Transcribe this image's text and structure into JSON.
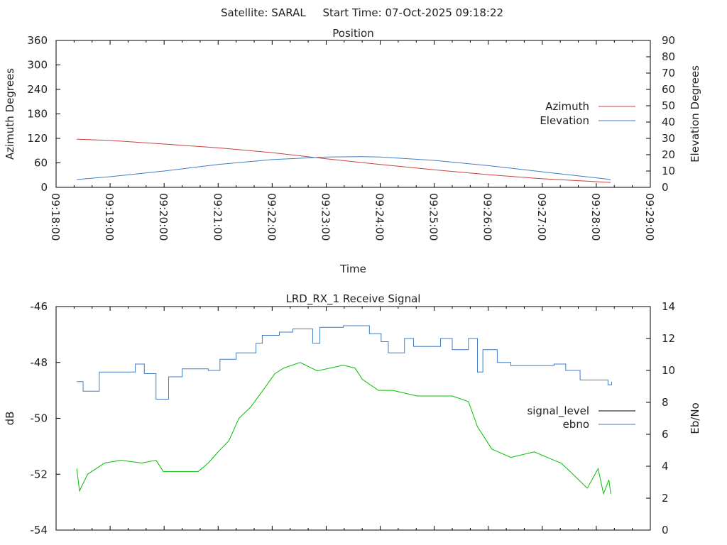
{
  "page": {
    "title": "Satellite: SARAL     Start Time: 07-Oct-2025 09:18:22"
  },
  "chart_data": [
    {
      "type": "line",
      "title": "Position",
      "xlabel": "Time",
      "ylabel": "Azimuth Degrees",
      "y2label": "Elevation Degrees",
      "xlim": [
        "09:18:00",
        "09:29:00"
      ],
      "xticks": [
        "09:18:00",
        "09:19:00",
        "09:20:00",
        "09:21:00",
        "09:22:00",
        "09:23:00",
        "09:24:00",
        "09:25:00",
        "09:26:00",
        "09:27:00",
        "09:28:00",
        "09:29:00"
      ],
      "ylim": [
        0,
        360
      ],
      "yticks": [
        0,
        60,
        120,
        180,
        240,
        300,
        360
      ],
      "y2lim": [
        0,
        90
      ],
      "y2ticks": [
        0,
        10,
        20,
        30,
        40,
        50,
        60,
        70,
        80,
        90
      ],
      "legend": "right",
      "grid": false,
      "series": [
        {
          "name": "Azimuth",
          "axis": "y",
          "color": "#c8423c",
          "points": [
            [
              "09:18:23",
              118
            ],
            [
              "09:19:00",
              115
            ],
            [
              "09:20:00",
              106
            ],
            [
              "09:21:00",
              97
            ],
            [
              "09:22:00",
              85
            ],
            [
              "09:23:00",
              70
            ],
            [
              "09:24:00",
              56
            ],
            [
              "09:25:00",
              43
            ],
            [
              "09:26:00",
              31
            ],
            [
              "09:27:00",
              21
            ],
            [
              "09:28:00",
              14
            ],
            [
              "09:28:16",
              12
            ]
          ]
        },
        {
          "name": "Elevation",
          "axis": "y2",
          "color": "#3f7cc4",
          "points": [
            [
              "09:18:23",
              4.8
            ],
            [
              "09:19:00",
              6.5
            ],
            [
              "09:20:00",
              10
            ],
            [
              "09:21:00",
              14
            ],
            [
              "09:22:00",
              17
            ],
            [
              "09:23:00",
              18.6
            ],
            [
              "09:23:40",
              18.8
            ],
            [
              "09:24:00",
              18.6
            ],
            [
              "09:25:00",
              16.5
            ],
            [
              "09:26:00",
              13.3
            ],
            [
              "09:27:00",
              9.5
            ],
            [
              "09:28:00",
              5.8
            ],
            [
              "09:28:16",
              4.8
            ]
          ]
        }
      ]
    },
    {
      "type": "line",
      "title": "LRD_RX_1 Receive Signal",
      "xlabel": "",
      "ylabel": "dB",
      "y2label": "Eb/No",
      "xlim": [
        "09:18:00",
        "09:29:00"
      ],
      "ylim": [
        -54,
        -46
      ],
      "yticks": [
        -54,
        -52,
        -50,
        -48,
        -46
      ],
      "y2lim": [
        0,
        14
      ],
      "y2ticks": [
        0,
        2,
        4,
        6,
        8,
        10,
        12,
        14
      ],
      "legend": "right",
      "grid": false,
      "series": [
        {
          "name": "signal_level",
          "axis": "y",
          "color": "#00c000",
          "legend_color": "#000000",
          "points": [
            [
              "09:18:23",
              -51.8
            ],
            [
              "09:18:26",
              -52.6
            ],
            [
              "09:18:35",
              -52.0
            ],
            [
              "09:18:54",
              -51.6
            ],
            [
              "09:19:12",
              -51.5
            ],
            [
              "09:19:35",
              -51.6
            ],
            [
              "09:19:51",
              -51.5
            ],
            [
              "09:19:59",
              -51.9
            ],
            [
              "09:20:23",
              -51.9
            ],
            [
              "09:20:38",
              -51.9
            ],
            [
              "09:20:49",
              -51.6
            ],
            [
              "09:21:00",
              -51.2
            ],
            [
              "09:21:12",
              -50.8
            ],
            [
              "09:21:23",
              -50.0
            ],
            [
              "09:21:36",
              -49.6
            ],
            [
              "09:21:52",
              -48.9
            ],
            [
              "09:22:03",
              -48.4
            ],
            [
              "09:22:13",
              -48.2
            ],
            [
              "09:22:31",
              -48.0
            ],
            [
              "09:22:50",
              -48.3
            ],
            [
              "09:23:19",
              -48.1
            ],
            [
              "09:23:32",
              -48.2
            ],
            [
              "09:23:40",
              -48.6
            ],
            [
              "09:23:58",
              -49.0
            ],
            [
              "09:24:14",
              -49.0
            ],
            [
              "09:24:41",
              -49.2
            ],
            [
              "09:25:20",
              -49.2
            ],
            [
              "09:25:38",
              -49.4
            ],
            [
              "09:25:48",
              -50.3
            ],
            [
              "09:26:04",
              -51.1
            ],
            [
              "09:26:25",
              -51.4
            ],
            [
              "09:26:51",
              -51.2
            ],
            [
              "09:27:13",
              -51.5
            ],
            [
              "09:27:21",
              -51.6
            ],
            [
              "09:27:34",
              -52.0
            ],
            [
              "09:27:50",
              -52.5
            ],
            [
              "09:28:02",
              -51.8
            ],
            [
              "09:28:08",
              -52.7
            ],
            [
              "09:28:14",
              -52.2
            ],
            [
              "09:28:16",
              -52.7
            ]
          ]
        },
        {
          "name": "ebno",
          "axis": "y2",
          "color": "#3f7cc4",
          "legend_color": "#3f7cc4",
          "points": [
            [
              "09:18:23",
              9.3
            ],
            [
              "09:18:30",
              8.7
            ],
            [
              "09:18:48",
              9.9
            ],
            [
              "09:19:28",
              10.4
            ],
            [
              "09:19:38",
              9.8
            ],
            [
              "09:19:51",
              8.2
            ],
            [
              "09:20:05",
              9.6
            ],
            [
              "09:20:20",
              10.1
            ],
            [
              "09:20:49",
              10.0
            ],
            [
              "09:21:02",
              10.7
            ],
            [
              "09:21:20",
              11.1
            ],
            [
              "09:21:42",
              11.7
            ],
            [
              "09:21:49",
              12.2
            ],
            [
              "09:22:08",
              12.4
            ],
            [
              "09:22:23",
              12.6
            ],
            [
              "09:22:45",
              11.7
            ],
            [
              "09:22:53",
              12.7
            ],
            [
              "09:23:19",
              12.8
            ],
            [
              "09:23:48",
              12.3
            ],
            [
              "09:24:01",
              11.8
            ],
            [
              "09:24:09",
              11.1
            ],
            [
              "09:24:27",
              12.0
            ],
            [
              "09:24:37",
              11.5
            ],
            [
              "09:25:07",
              12.0
            ],
            [
              "09:25:20",
              11.3
            ],
            [
              "09:25:38",
              12.0
            ],
            [
              "09:25:48",
              9.9
            ],
            [
              "09:25:54",
              11.3
            ],
            [
              "09:26:10",
              10.5
            ],
            [
              "09:26:25",
              10.3
            ],
            [
              "09:27:13",
              10.4
            ],
            [
              "09:27:26",
              10.0
            ],
            [
              "09:27:42",
              9.4
            ],
            [
              "09:27:58",
              9.4
            ],
            [
              "09:28:13",
              9.1
            ],
            [
              "09:28:17",
              9.3
            ]
          ]
        }
      ]
    }
  ]
}
